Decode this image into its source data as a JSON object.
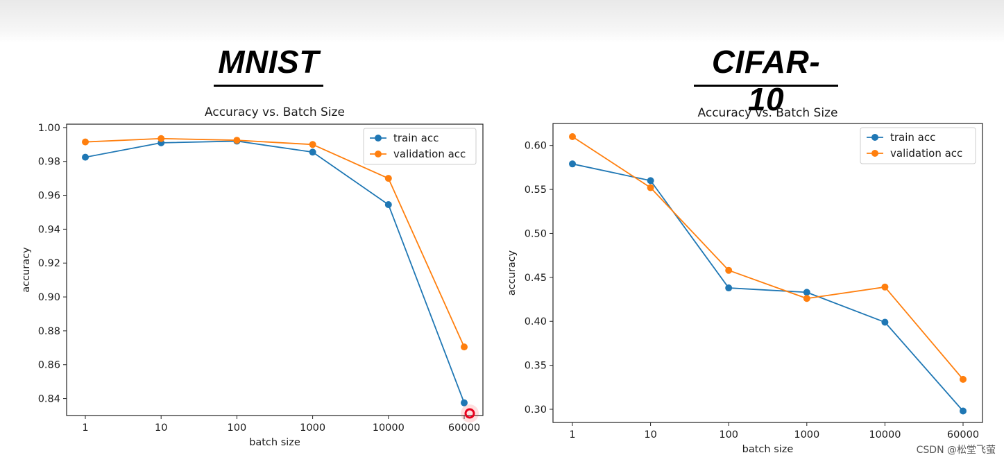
{
  "headings": {
    "left": "MNIST",
    "right": "CIFAR-10"
  },
  "watermark": "CSDN @松堂飞萤",
  "colors": {
    "train": "#1f77b4",
    "validation": "#ff7f0e"
  },
  "chart_data": [
    {
      "type": "line",
      "title": "Accuracy vs. Batch Size",
      "xlabel": "batch size",
      "ylabel": "accuracy",
      "categories": [
        "1",
        "10",
        "100",
        "1000",
        "10000",
        "60000"
      ],
      "ylim": [
        0.83,
        1.002
      ],
      "yticks": [
        "0.84",
        "0.86",
        "0.88",
        "0.90",
        "0.92",
        "0.94",
        "0.96",
        "0.98",
        "1.00"
      ],
      "legend_position": "top-right",
      "grid": false,
      "series": [
        {
          "name": "train acc",
          "values": [
            0.9825,
            0.991,
            0.992,
            0.9855,
            0.9545,
            0.8375
          ]
        },
        {
          "name": "validation acc",
          "values": [
            0.9915,
            0.9935,
            0.9925,
            0.99,
            0.97,
            0.8705
          ]
        }
      ]
    },
    {
      "type": "line",
      "title": "Accuracy vs. Batch Size",
      "xlabel": "batch size",
      "ylabel": "accuracy",
      "categories": [
        "1",
        "10",
        "100",
        "1000",
        "10000",
        "60000"
      ],
      "ylim": [
        0.285,
        0.625
      ],
      "yticks": [
        "0.30",
        "0.35",
        "0.40",
        "0.45",
        "0.50",
        "0.55",
        "0.60"
      ],
      "legend_position": "top-right",
      "grid": false,
      "series": [
        {
          "name": "train acc",
          "values": [
            0.579,
            0.56,
            0.438,
            0.433,
            0.399,
            0.298
          ]
        },
        {
          "name": "validation acc",
          "values": [
            0.61,
            0.552,
            0.458,
            0.426,
            0.439,
            0.334
          ]
        }
      ]
    }
  ]
}
